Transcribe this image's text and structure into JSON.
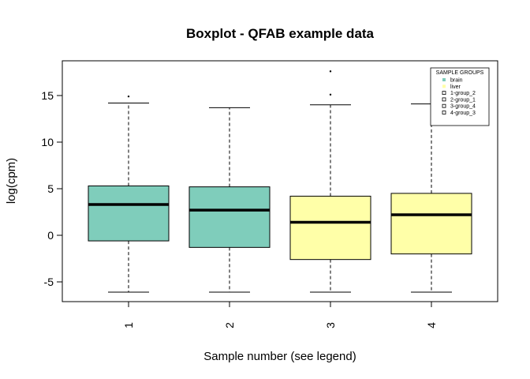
{
  "chart_data": {
    "type": "boxplot",
    "title": "Boxplot - QFAB example data",
    "xlabel": "Sample number (see legend)",
    "ylabel": "log(cpm)",
    "ylim": [
      -7,
      19
    ],
    "yticks": [
      -5,
      0,
      5,
      10,
      15
    ],
    "ytick_labels": [
      "-5",
      "0",
      "5",
      "10",
      "15"
    ],
    "categories": [
      "1",
      "2",
      "3",
      "4"
    ],
    "boxes": [
      {
        "name": "1",
        "q1": -0.6,
        "median": 3.3,
        "q3": 5.3,
        "whisker_low": -6.1,
        "whisker_high": 14.2,
        "outliers": [
          14.9
        ],
        "color": "#7fcdbb"
      },
      {
        "name": "2",
        "q1": -1.3,
        "median": 2.7,
        "q3": 5.2,
        "whisker_low": -6.1,
        "whisker_high": 13.7,
        "outliers": [],
        "color": "#7fcdbb"
      },
      {
        "name": "3",
        "q1": -2.6,
        "median": 1.4,
        "q3": 4.2,
        "whisker_low": -6.1,
        "whisker_high": 14.0,
        "outliers": [
          15.1,
          17.6
        ],
        "color": "#ffffa8"
      },
      {
        "name": "4",
        "q1": -2.0,
        "median": 2.2,
        "q3": 4.5,
        "whisker_low": -6.1,
        "whisker_high": 14.1,
        "outliers": [],
        "color": "#ffffa8"
      }
    ],
    "legend": {
      "title": "SAMPLE GROUPS",
      "position": "top-right",
      "entries": [
        {
          "label": "brain",
          "color": "#7fcdbb",
          "style": "filled"
        },
        {
          "label": "liver",
          "color": "#ffffa8",
          "style": "filled"
        },
        {
          "label": "1-group_2",
          "color": "#000000",
          "style": "open"
        },
        {
          "label": "2-group_1",
          "color": "#000000",
          "style": "open"
        },
        {
          "label": "3-group_4",
          "color": "#000000",
          "style": "open"
        },
        {
          "label": "4-group_3",
          "color": "#000000",
          "style": "open"
        }
      ]
    }
  }
}
